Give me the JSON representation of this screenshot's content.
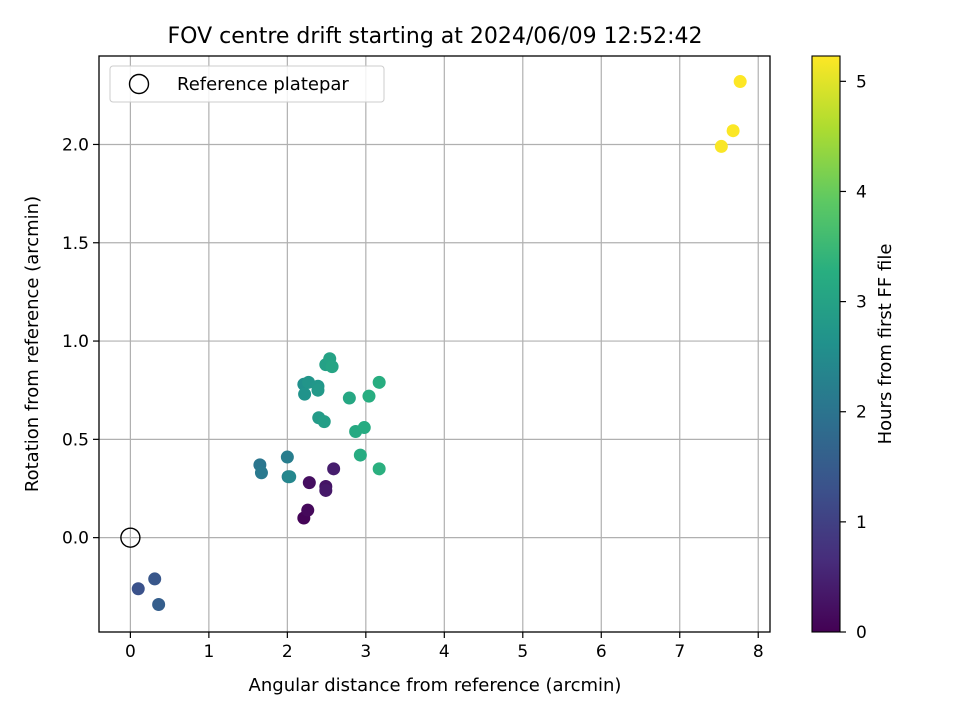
{
  "chart_data": {
    "type": "scatter",
    "title": "FOV centre drift starting at 2024/06/09 12:52:42",
    "xlabel": "Angular distance from reference (arcmin)",
    "ylabel": "Rotation from reference (arcmin)",
    "xlim": [
      -0.4,
      8.15
    ],
    "ylim": [
      -0.48,
      2.45
    ],
    "xticks": [
      0,
      1,
      2,
      3,
      4,
      5,
      6,
      7,
      8
    ],
    "xtick_labels": [
      "0",
      "1",
      "2",
      "3",
      "4",
      "5",
      "6",
      "7",
      "8"
    ],
    "yticks": [
      0.0,
      0.5,
      1.0,
      1.5,
      2.0
    ],
    "ytick_labels": [
      "0.0",
      "0.5",
      "1.0",
      "1.5",
      "2.0"
    ],
    "grid": true,
    "legend": {
      "placement": "top-left",
      "entries": [
        {
          "label": "Reference platepar",
          "marker": "open-circle",
          "x": 0,
          "y": 0
        }
      ]
    },
    "colorbar": {
      "label": "Hours from first FF file",
      "colormap": "viridis",
      "range": [
        0,
        5.23
      ],
      "ticks": [
        0,
        1,
        2,
        3,
        4,
        5
      ],
      "tick_labels": [
        "0",
        "1",
        "2",
        "3",
        "4",
        "5"
      ]
    },
    "points": [
      {
        "x": 2.21,
        "y": 0.1,
        "hours": 0.05
      },
      {
        "x": 2.26,
        "y": 0.14,
        "hours": 0.12
      },
      {
        "x": 2.28,
        "y": 0.28,
        "hours": 0.2
      },
      {
        "x": 2.49,
        "y": 0.26,
        "hours": 0.28
      },
      {
        "x": 2.49,
        "y": 0.24,
        "hours": 0.35
      },
      {
        "x": 2.59,
        "y": 0.35,
        "hours": 0.42
      },
      {
        "x": 0.1,
        "y": -0.26,
        "hours": 1.3
      },
      {
        "x": 0.31,
        "y": -0.21,
        "hours": 1.4
      },
      {
        "x": 0.36,
        "y": -0.34,
        "hours": 1.55
      },
      {
        "x": 1.65,
        "y": 0.37,
        "hours": 2.05
      },
      {
        "x": 1.67,
        "y": 0.33,
        "hours": 2.1
      },
      {
        "x": 2.0,
        "y": 0.41,
        "hours": 2.2
      },
      {
        "x": 2.01,
        "y": 0.31,
        "hours": 2.3
      },
      {
        "x": 2.03,
        "y": 0.31,
        "hours": 2.4
      },
      {
        "x": 2.21,
        "y": 0.78,
        "hours": 2.6
      },
      {
        "x": 2.22,
        "y": 0.73,
        "hours": 2.65
      },
      {
        "x": 2.27,
        "y": 0.79,
        "hours": 2.7
      },
      {
        "x": 2.39,
        "y": 0.77,
        "hours": 2.75
      },
      {
        "x": 2.39,
        "y": 0.75,
        "hours": 2.8
      },
      {
        "x": 2.4,
        "y": 0.61,
        "hours": 2.85
      },
      {
        "x": 2.47,
        "y": 0.59,
        "hours": 2.9
      },
      {
        "x": 2.49,
        "y": 0.88,
        "hours": 2.95
      },
      {
        "x": 2.54,
        "y": 0.91,
        "hours": 3.0
      },
      {
        "x": 2.57,
        "y": 0.87,
        "hours": 3.05
      },
      {
        "x": 2.79,
        "y": 0.71,
        "hours": 3.1
      },
      {
        "x": 2.87,
        "y": 0.54,
        "hours": 3.15
      },
      {
        "x": 2.93,
        "y": 0.42,
        "hours": 3.2
      },
      {
        "x": 2.98,
        "y": 0.56,
        "hours": 3.2
      },
      {
        "x": 3.04,
        "y": 0.72,
        "hours": 3.25
      },
      {
        "x": 3.17,
        "y": 0.79,
        "hours": 3.25
      },
      {
        "x": 3.17,
        "y": 0.35,
        "hours": 3.3
      },
      {
        "x": 7.53,
        "y": 1.99,
        "hours": 5.2
      },
      {
        "x": 7.68,
        "y": 2.07,
        "hours": 5.21
      },
      {
        "x": 7.77,
        "y": 2.32,
        "hours": 5.23
      }
    ]
  }
}
